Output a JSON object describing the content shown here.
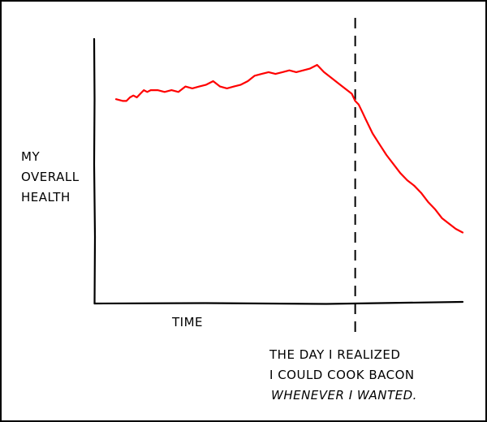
{
  "chart_data": {
    "type": "line",
    "title": "",
    "ylabel_lines": [
      "MY",
      "OVERALL",
      "HEALTH"
    ],
    "xlabel": "TIME",
    "annotation_lines": [
      "THE DAY I REALIZED",
      "I COULD COOK BACON",
      "WHENEVER I WANTED."
    ],
    "annotation_x": 0.69,
    "xlim": [
      0,
      1
    ],
    "ylim": [
      0,
      1
    ],
    "grid": false,
    "series_color": "#ff0000",
    "series": [
      {
        "x": [
          0.0,
          0.02,
          0.03,
          0.04,
          0.05,
          0.06,
          0.07,
          0.08,
          0.09,
          0.1,
          0.12,
          0.14,
          0.16,
          0.18,
          0.2,
          0.22,
          0.24,
          0.26,
          0.28,
          0.3,
          0.32,
          0.34,
          0.36,
          0.38,
          0.4,
          0.42,
          0.44,
          0.46,
          0.48,
          0.5,
          0.52,
          0.54,
          0.56,
          0.58,
          0.6,
          0.62,
          0.64,
          0.66,
          0.68,
          0.69,
          0.7,
          0.71,
          0.72,
          0.73,
          0.74,
          0.76,
          0.78,
          0.8,
          0.82,
          0.84,
          0.86,
          0.88,
          0.9,
          0.92,
          0.94,
          0.96,
          0.98,
          1.0
        ],
        "y": [
          0.81,
          0.8,
          0.8,
          0.82,
          0.83,
          0.82,
          0.84,
          0.86,
          0.85,
          0.86,
          0.86,
          0.85,
          0.86,
          0.85,
          0.88,
          0.87,
          0.88,
          0.89,
          0.91,
          0.88,
          0.87,
          0.88,
          0.89,
          0.91,
          0.94,
          0.95,
          0.96,
          0.95,
          0.96,
          0.97,
          0.96,
          0.97,
          0.98,
          1.0,
          0.96,
          0.93,
          0.9,
          0.87,
          0.84,
          0.8,
          0.78,
          0.74,
          0.7,
          0.66,
          0.62,
          0.56,
          0.5,
          0.45,
          0.4,
          0.36,
          0.33,
          0.29,
          0.24,
          0.2,
          0.15,
          0.12,
          0.09,
          0.07
        ]
      }
    ]
  }
}
